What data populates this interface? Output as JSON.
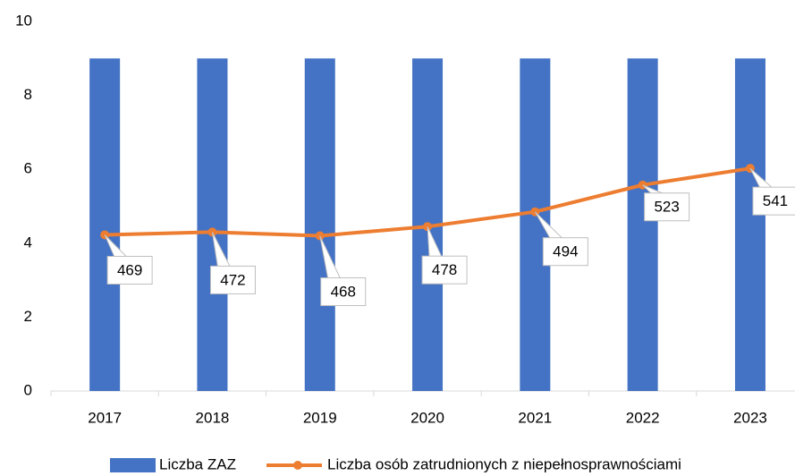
{
  "chart_data": {
    "type": "bar-line",
    "categories": [
      "2017",
      "2018",
      "2019",
      "2020",
      "2021",
      "2022",
      "2023"
    ],
    "series": [
      {
        "name": "Liczba ZAZ",
        "type": "bar",
        "color": "#4472c4",
        "values": [
          9,
          9,
          9,
          9,
          9,
          9,
          9
        ]
      },
      {
        "name": "Liczba osób zatrudnionych z niepełnosprawnościami",
        "type": "line",
        "axis": "y2",
        "color": "#ed7d31",
        "values": [
          469,
          472,
          468,
          478,
          494,
          523,
          541
        ]
      }
    ],
    "ylim": [
      0,
      10
    ],
    "yticks": [
      0,
      2,
      4,
      6,
      8,
      10
    ],
    "y2lim": [
      300,
      700
    ],
    "grid": false,
    "legend": "bottom"
  }
}
